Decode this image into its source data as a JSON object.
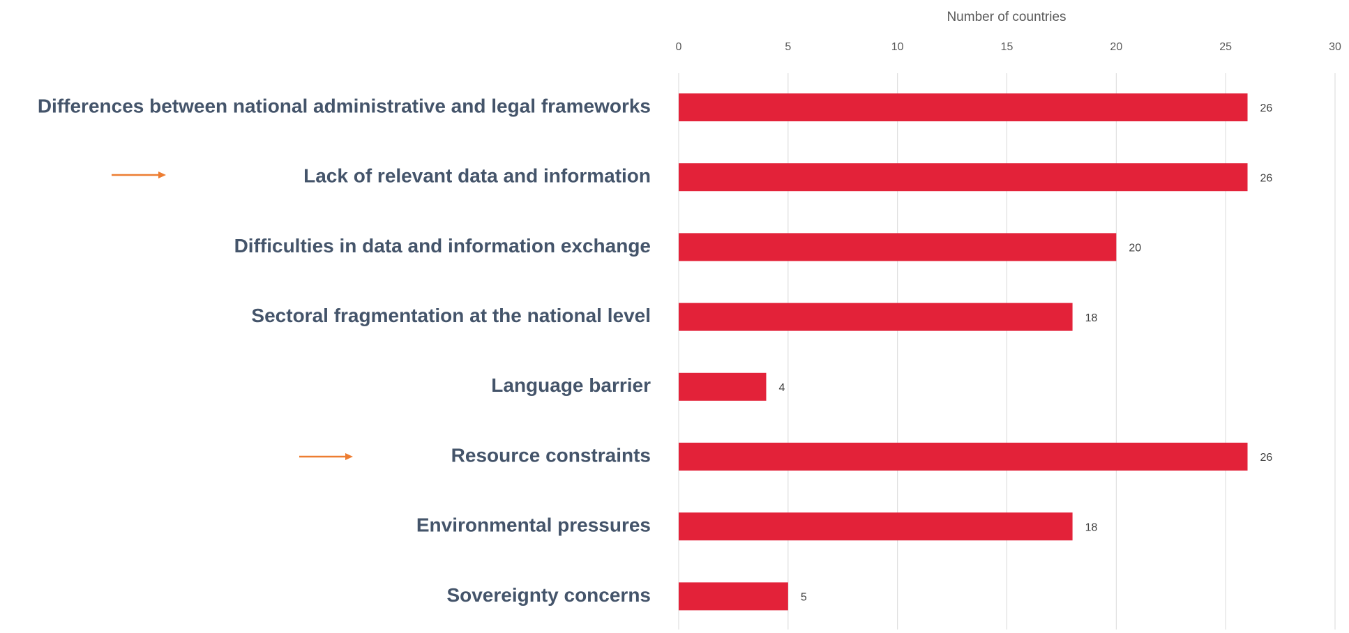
{
  "chart_data": {
    "type": "bar",
    "orientation": "horizontal",
    "x_label": "Number of countries",
    "categories": [
      "Differences between national administrative and legal frameworks",
      "Lack of relevant data and information",
      "Difficulties in data and information exchange",
      "Sectoral fragmentation at the national level",
      "Language barrier",
      "Resource constraints",
      "Environmental pressures",
      "Sovereignty concerns"
    ],
    "values": [
      26,
      26,
      20,
      18,
      4,
      26,
      18,
      5
    ],
    "color": "#e32239",
    "xlim": [
      0,
      30
    ],
    "xticks": [
      0,
      5,
      10,
      15,
      20,
      25,
      30
    ],
    "grid": true
  }
}
